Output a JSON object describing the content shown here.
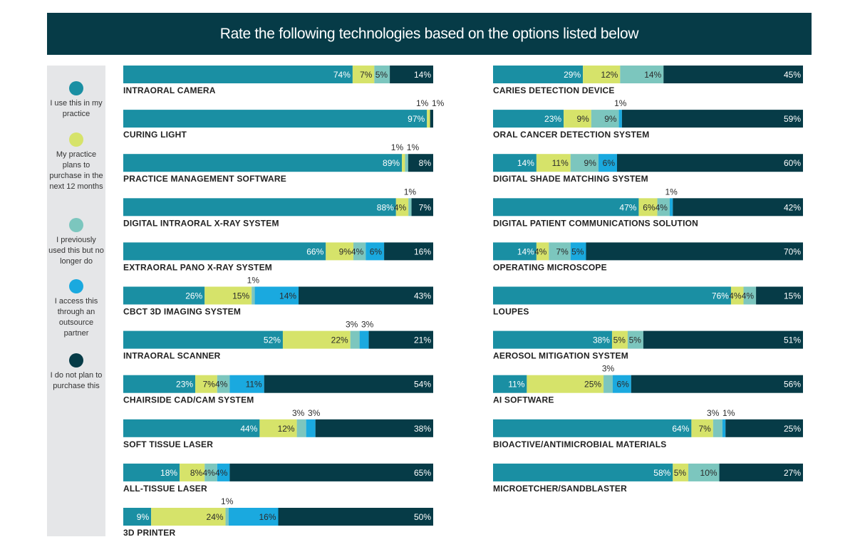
{
  "title": "Rate the following technologies based on the options listed below",
  "colors": {
    "header_bg": "#063b47",
    "legend_bg": "#e5e6e8",
    "use": "#1a8fa3",
    "plan": "#d6e36a",
    "previously": "#7cc6be",
    "outsource": "#1aa9df",
    "not_plan": "#063b47"
  },
  "legend": [
    {
      "key": "use",
      "label": "I use this in my practice",
      "color": "#1a8fa3"
    },
    {
      "key": "plan",
      "label": "My practice plans to purchase in the next 12 months",
      "color": "#d6e36a"
    },
    {
      "key": "previously",
      "label": "I previously used this but no longer do",
      "color": "#7cc6be"
    },
    {
      "key": "outsource",
      "label": "I access this through an outsource partner",
      "color": "#1aa9df"
    },
    {
      "key": "not_plan",
      "label": "I do not plan to purchase this",
      "color": "#063b47"
    }
  ],
  "chart_data": {
    "type": "bar",
    "orientation": "horizontal",
    "stacked": true,
    "title": "Rate the following technologies based on the options listed below",
    "series": [
      {
        "key": "use",
        "name": "I use this in my practice"
      },
      {
        "key": "plan",
        "name": "My practice plans to purchase in the next 12 months"
      },
      {
        "key": "previously",
        "name": "I previously used this but no longer do"
      },
      {
        "key": "outsource",
        "name": "I access this through an outsource partner"
      },
      {
        "key": "not_plan",
        "name": "I do not plan to purchase this"
      }
    ],
    "columns": [
      [
        {
          "category": "INTRAORAL CAMERA",
          "values": [
            74,
            7,
            5,
            0,
            14
          ],
          "labels": [
            "74%",
            "7%",
            "5%",
            "",
            "14%"
          ]
        },
        {
          "category": "CURING LIGHT",
          "values": [
            97,
            1,
            0,
            0,
            1
          ],
          "labels": [
            "97%",
            "1%",
            "",
            "",
            "1%"
          ]
        },
        {
          "category": "PRACTICE MANAGEMENT SOFTWARE",
          "values": [
            89,
            1,
            1,
            0,
            8
          ],
          "labels": [
            "89%",
            "1%",
            "1%",
            "",
            "8%"
          ]
        },
        {
          "category": "DIGITAL INTRAORAL X-RAY SYSTEM",
          "values": [
            88,
            4,
            1,
            0,
            7
          ],
          "labels": [
            "88%",
            "4%",
            "1%",
            "",
            "7%"
          ]
        },
        {
          "category": "EXTRAORAL PANO X-RAY SYSTEM",
          "values": [
            66,
            9,
            4,
            6,
            16
          ],
          "labels": [
            "66%",
            "9%",
            "4%",
            "6%",
            "16%"
          ]
        },
        {
          "category": "CBCT 3D IMAGING SYSTEM",
          "values": [
            26,
            15,
            1,
            14,
            43
          ],
          "labels": [
            "26%",
            "15%",
            "1%",
            "14%",
            "43%"
          ]
        },
        {
          "category": "INTRAORAL SCANNER",
          "values": [
            52,
            22,
            3,
            3,
            21
          ],
          "labels": [
            "52%",
            "22%",
            "3%",
            "3%",
            "21%"
          ]
        },
        {
          "category": "CHAIRSIDE CAD/CAM SYSTEM",
          "values": [
            23,
            7,
            4,
            11,
            54
          ],
          "labels": [
            "23%",
            "7%",
            "4%",
            "11%",
            "54%"
          ]
        },
        {
          "category": "SOFT TISSUE LASER",
          "values": [
            44,
            12,
            3,
            3,
            38
          ],
          "labels": [
            "44%",
            "12%",
            "3%",
            "3%",
            "38%"
          ]
        },
        {
          "category": "ALL-TISSUE LASER",
          "values": [
            18,
            8,
            4,
            4,
            65
          ],
          "labels": [
            "18%",
            "8%",
            "4%",
            "4%",
            "65%"
          ]
        },
        {
          "category": "3D PRINTER",
          "values": [
            9,
            24,
            1,
            16,
            50
          ],
          "labels": [
            "9%",
            "24%",
            "1%",
            "16%",
            "50%"
          ]
        }
      ],
      [
        {
          "category": "CARIES DETECTION DEVICE",
          "values": [
            29,
            12,
            14,
            0,
            45
          ],
          "labels": [
            "29%",
            "12%",
            "14%",
            "",
            "45%"
          ]
        },
        {
          "category": "ORAL CANCER DETECTION SYSTEM",
          "values": [
            23,
            9,
            9,
            1,
            59
          ],
          "labels": [
            "23%",
            "9%",
            "9%",
            "1%",
            "59%"
          ]
        },
        {
          "category": "DIGITAL SHADE MATCHING SYSTEM",
          "values": [
            14,
            11,
            9,
            6,
            60
          ],
          "labels": [
            "14%",
            "11%",
            "9%",
            "6%",
            "60%"
          ]
        },
        {
          "category": "DIGITAL PATIENT COMMUNICATIONS SOLUTION",
          "values": [
            47,
            6,
            4,
            1,
            42
          ],
          "labels": [
            "47%",
            "6%",
            "4%",
            "1%",
            "42%"
          ]
        },
        {
          "category": "OPERATING MICROSCOPE",
          "values": [
            14,
            4,
            7,
            5,
            70
          ],
          "labels": [
            "14%",
            "4%",
            "7%",
            "5%",
            "70%"
          ]
        },
        {
          "category": "LOUPES",
          "values": [
            76,
            4,
            4,
            0,
            15
          ],
          "labels": [
            "76%",
            "4%",
            "4%",
            "",
            "15%"
          ]
        },
        {
          "category": "AEROSOL MITIGATION SYSTEM",
          "values": [
            38,
            5,
            5,
            0,
            51
          ],
          "labels": [
            "38%",
            "5%",
            "5%",
            "",
            "51%"
          ]
        },
        {
          "category": "AI SOFTWARE",
          "values": [
            11,
            25,
            3,
            6,
            56
          ],
          "labels": [
            "11%",
            "25%",
            "3%",
            "6%",
            "56%"
          ]
        },
        {
          "category": "BIOACTIVE/ANTIMICROBIAL MATERIALS",
          "values": [
            64,
            7,
            3,
            1,
            25
          ],
          "labels": [
            "64%",
            "7%",
            "3%",
            "1%",
            "25%"
          ]
        },
        {
          "category": "MICROETCHER/SANDBLASTER",
          "values": [
            58,
            5,
            10,
            0,
            27
          ],
          "labels": [
            "58%",
            "5%",
            "10%",
            "",
            "27%"
          ]
        }
      ]
    ]
  }
}
